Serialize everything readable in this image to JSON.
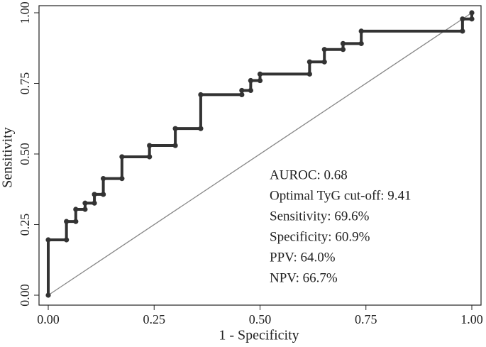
{
  "chart_data": {
    "type": "line",
    "x_label": "1 - Specificity",
    "y_label": "Sensitivity",
    "xlim": [
      0,
      1
    ],
    "ylim": [
      0,
      1
    ],
    "xticks": [
      {
        "value": 0,
        "label": "0.00"
      },
      {
        "value": 0.25,
        "label": "0.25"
      },
      {
        "value": 0.5,
        "label": "0.50"
      },
      {
        "value": 0.75,
        "label": "0.75"
      },
      {
        "value": 1,
        "label": "1.00"
      }
    ],
    "yticks": [
      {
        "value": 0,
        "label": "0.00"
      },
      {
        "value": 0.25,
        "label": "0.25"
      },
      {
        "value": 0.5,
        "label": "0.50"
      },
      {
        "value": 0.75,
        "label": "0.75"
      },
      {
        "value": 1,
        "label": "1.00"
      }
    ],
    "series": [
      {
        "color": "#333333",
        "x": [
          0,
          0,
          0.043,
          0.043,
          0.065,
          0.065,
          0.087,
          0.087,
          0.109,
          0.109,
          0.13,
          0.13,
          0.174,
          0.174,
          0.239,
          0.239,
          0.3,
          0.3,
          0.36,
          0.36,
          0.457,
          0.457,
          0.478,
          0.478,
          0.5,
          0.5,
          0.617,
          0.617,
          0.652,
          0.652,
          0.696,
          0.696,
          0.739,
          0.739,
          0.978,
          0.978,
          1,
          1
        ],
        "values": [
          0,
          0.196,
          0.196,
          0.261,
          0.261,
          0.304,
          0.304,
          0.326,
          0.326,
          0.357,
          0.357,
          0.413,
          0.413,
          0.49,
          0.49,
          0.53,
          0.53,
          0.59,
          0.59,
          0.71,
          0.71,
          0.725,
          0.725,
          0.76,
          0.76,
          0.783,
          0.783,
          0.826,
          0.826,
          0.87,
          0.87,
          0.891,
          0.891,
          0.935,
          0.935,
          0.978,
          0.978,
          1
        ]
      }
    ],
    "diagonal": true,
    "annotations": [
      "AUROC: 0.68",
      "Optimal TyG cut-off: 9.41",
      "Sensitivity: 69.6%",
      "Specificity: 60.9%",
      "PPV: 64.0%",
      "NPV: 66.7%"
    ]
  }
}
